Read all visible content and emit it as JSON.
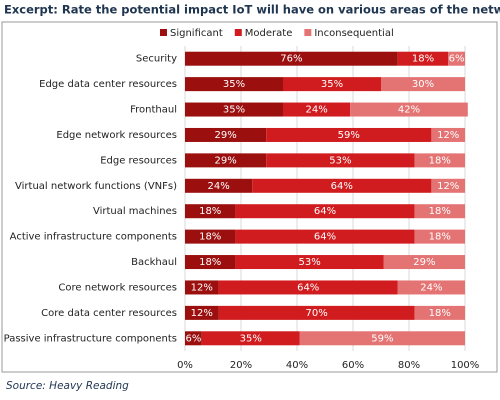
{
  "chart_data": {
    "type": "stacked-barh",
    "title": "Excerpt: Rate the potential impact IoT will have on various areas of the network",
    "source": "Source: Heavy Reading",
    "categories": [
      "Security",
      "Edge data center resources",
      "Fronthaul",
      "Edge network resources",
      "Edge resources",
      "Virtual network functions (VNFs)",
      "Virtual machines",
      "Active infrastructure components",
      "Backhaul",
      "Core network resources",
      "Core data center resources",
      "Passive infrastructure components"
    ],
    "series": [
      {
        "name": "Significant",
        "color": "#9b0f0f",
        "values": [
          76,
          35,
          35,
          29,
          29,
          24,
          18,
          18,
          18,
          12,
          12,
          6
        ],
        "value_labels": [
          "76%",
          "35%",
          "35%",
          "29%",
          "29%",
          "24%",
          "18%",
          "18%",
          "18%",
          "12%",
          "12%",
          "6%"
        ]
      },
      {
        "name": "Moderate",
        "color": "#d01c1f",
        "values": [
          18,
          35,
          24,
          59,
          53,
          64,
          64,
          64,
          53,
          64,
          70,
          35
        ],
        "value_labels": [
          "18%",
          "35%",
          "24%",
          "59%",
          "53%",
          "64%",
          "64%",
          "64%",
          "53%",
          "64%",
          "70%",
          "35%"
        ]
      },
      {
        "name": "Inconsequential",
        "color": "#e47474",
        "values": [
          6,
          30,
          42,
          12,
          18,
          12,
          18,
          18,
          29,
          24,
          18,
          59
        ],
        "value_labels": [
          "6%",
          "30%",
          "42%",
          "12%",
          "18%",
          "12%",
          "18%",
          "18%",
          "29%",
          "24%",
          "18%",
          "59%"
        ]
      }
    ],
    "xlim": [
      0,
      100
    ],
    "xticks": [
      {
        "value": 0,
        "label": "0%"
      },
      {
        "value": 20,
        "label": "20%"
      },
      {
        "value": 40,
        "label": "40%"
      },
      {
        "value": 60,
        "label": "60%"
      },
      {
        "value": 80,
        "label": "80%"
      },
      {
        "value": 100,
        "label": "100%"
      }
    ],
    "grid": true,
    "legend": "top"
  }
}
